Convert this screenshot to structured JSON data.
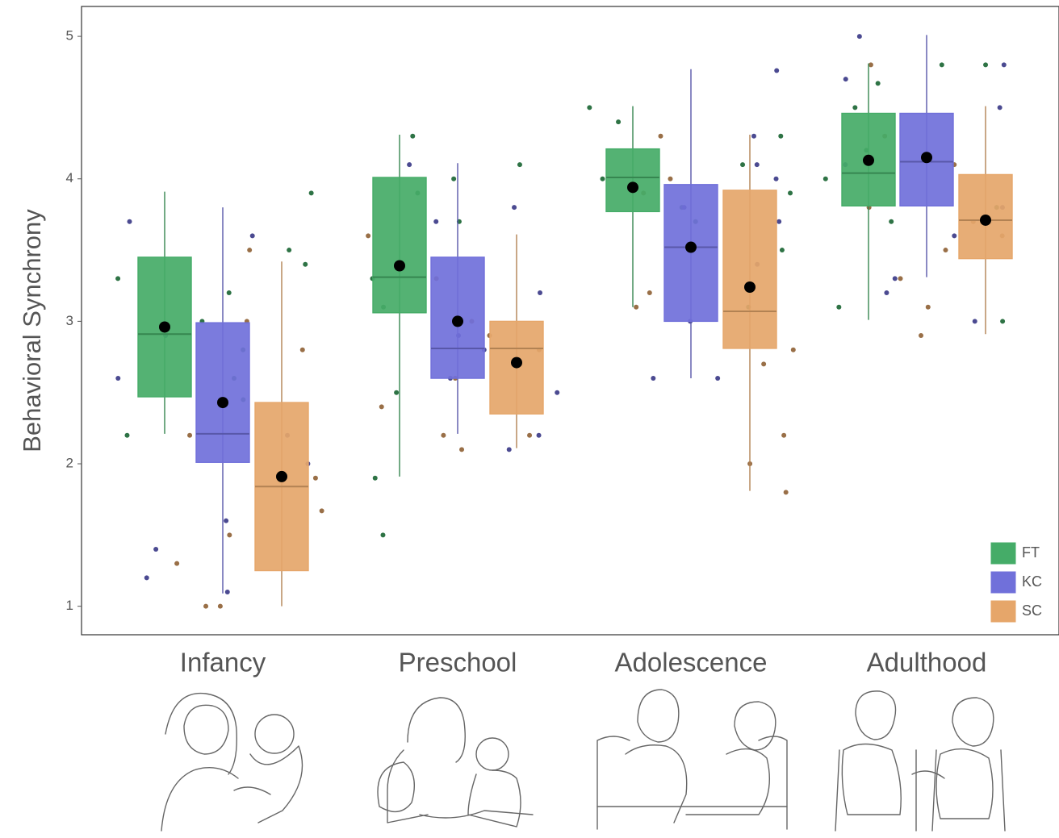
{
  "chart_data": {
    "type": "box",
    "y_label": "Behavioral Synchrony",
    "categories": [
      "Infancy",
      "Preschool",
      "Adolescence",
      "Adulthood"
    ],
    "ylim": [
      0.8,
      5.21
    ],
    "yticks": [
      1,
      2,
      3,
      4,
      5
    ],
    "legend": "bottom-right",
    "series": [
      {
        "name": "FT",
        "color": "#4dbf73",
        "boxes": [
          {
            "whislo": 2.21,
            "q1": 2.47,
            "med": 2.91,
            "q3": 3.45,
            "whishi": 3.91,
            "mean": 2.96
          },
          {
            "whislo": 1.91,
            "q1": 3.06,
            "med": 3.31,
            "q3": 4.01,
            "whishi": 4.31,
            "mean": 3.39
          },
          {
            "whislo": 3.1,
            "q1": 3.77,
            "med": 4.01,
            "q3": 4.21,
            "whishi": 4.51,
            "mean": 3.94
          },
          {
            "whislo": 3.01,
            "q1": 3.81,
            "med": 4.04,
            "q3": 4.46,
            "whishi": 4.81,
            "mean": 4.13
          }
        ],
        "points": [
          [
            3.9,
            3.5,
            3.3,
            2.8,
            2.6,
            2.45,
            2.2,
            3.2,
            3.4,
            3.0
          ],
          [
            4.3,
            4.1,
            3.9,
            3.7,
            3.3,
            3.1,
            2.5,
            1.9,
            1.5,
            4.0
          ],
          [
            4.5,
            4.4,
            4.3,
            4.0,
            3.8,
            3.5,
            3.1,
            3.7,
            4.1,
            3.9
          ],
          [
            4.8,
            4.8,
            4.67,
            4.0,
            3.8,
            3.7,
            3.0,
            3.1,
            4.5,
            4.2
          ]
        ]
      },
      {
        "name": "KC",
        "color": "#7d7cf2",
        "boxes": [
          {
            "whislo": 1.09,
            "q1": 2.01,
            "med": 2.21,
            "q3": 2.99,
            "whishi": 3.8,
            "mean": 2.43
          },
          {
            "whislo": 2.21,
            "q1": 2.6,
            "med": 2.81,
            "q3": 3.45,
            "whishi": 4.11,
            "mean": 3.0
          },
          {
            "whislo": 2.6,
            "q1": 3.0,
            "med": 3.52,
            "q3": 3.96,
            "whishi": 4.77,
            "mean": 3.52
          },
          {
            "whislo": 3.31,
            "q1": 3.81,
            "med": 4.12,
            "q3": 4.46,
            "whishi": 5.01,
            "mean": 4.15
          }
        ],
        "points": [
          [
            3.7,
            3.6,
            2.6,
            2.2,
            2.0,
            1.6,
            1.4,
            1.2,
            1.1,
            2.9
          ],
          [
            4.1,
            3.8,
            3.2,
            2.9,
            2.6,
            2.5,
            2.2,
            2.8,
            3.7,
            2.1
          ],
          [
            4.76,
            4.3,
            4.0,
            3.8,
            3.4,
            3.0,
            2.6,
            2.6,
            3.7,
            4.1
          ],
          [
            5.0,
            4.8,
            4.7,
            4.5,
            4.1,
            3.8,
            3.6,
            3.3,
            3.2,
            3.0
          ]
        ]
      },
      {
        "name": "SC",
        "color": "#ffb976",
        "boxes": [
          {
            "whislo": 1.0,
            "q1": 1.25,
            "med": 1.84,
            "q3": 2.43,
            "whishi": 3.42,
            "mean": 1.91
          },
          {
            "whislo": 2.11,
            "q1": 2.35,
            "med": 2.81,
            "q3": 3.0,
            "whishi": 3.61,
            "mean": 2.71
          },
          {
            "whislo": 1.81,
            "q1": 2.81,
            "med": 3.07,
            "q3": 3.92,
            "whishi": 4.31,
            "mean": 3.24
          },
          {
            "whislo": 2.91,
            "q1": 3.44,
            "med": 3.71,
            "q3": 4.03,
            "whishi": 4.51,
            "mean": 3.71
          }
        ],
        "points": [
          [
            3.5,
            1.67,
            1.0,
            2.2,
            1.9,
            3.0,
            1.3,
            1.5,
            2.8,
            1.0
          ],
          [
            3.6,
            3.3,
            2.9,
            2.6,
            2.2,
            2.1,
            3.0,
            2.4,
            2.8,
            2.2
          ],
          [
            4.3,
            4.0,
            3.9,
            2.8,
            2.2,
            2.0,
            1.8,
            3.1,
            2.7,
            3.2
          ],
          [
            4.8,
            4.3,
            4.1,
            3.7,
            3.6,
            3.3,
            3.1,
            2.9,
            3.8,
            3.5
          ]
        ]
      }
    ]
  }
}
